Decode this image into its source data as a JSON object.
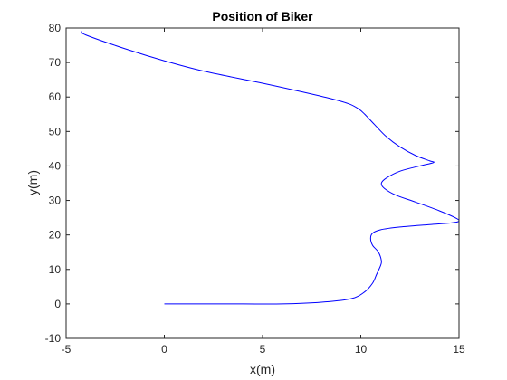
{
  "chart_data": {
    "type": "line",
    "title": "Position of Biker",
    "xlabel": "x(m)",
    "ylabel": "y(m)",
    "xlim": [
      -5,
      15
    ],
    "ylim": [
      -10,
      80
    ],
    "xticks": [
      -5,
      0,
      5,
      10,
      15
    ],
    "yticks": [
      -10,
      0,
      10,
      20,
      30,
      40,
      50,
      60,
      70,
      80
    ],
    "grid": false,
    "box": true,
    "series": [
      {
        "color": "#0000ff",
        "x": [
          0,
          2,
          4,
          6,
          8,
          9.5,
          10.2,
          10.6,
          10.8,
          11.0,
          11.05,
          10.9,
          10.6,
          10.5,
          10.6,
          11.0,
          12.0,
          13.5,
          14.6,
          15.0,
          14.8,
          14.0,
          12.8,
          11.8,
          11.2,
          11.05,
          11.3,
          12.0,
          13.0,
          13.7,
          13.5,
          12.8,
          12.0,
          11.3,
          10.7,
          10.2,
          9.9,
          9.4,
          8.5,
          7.0,
          5.0,
          2.0,
          0.0,
          -2.0,
          -4.0,
          -4.2
        ],
        "y": [
          0,
          0,
          0,
          0,
          0.5,
          1.5,
          3.5,
          6.0,
          8.5,
          11.0,
          12.5,
          15.0,
          17.0,
          19.0,
          20.5,
          21.5,
          22.3,
          23.0,
          23.5,
          24.0,
          25.0,
          27.0,
          29.5,
          31.5,
          33.5,
          35.0,
          36.5,
          38.5,
          40.0,
          41.0,
          41.5,
          43.0,
          45.5,
          48.5,
          52.0,
          55.0,
          56.5,
          58.0,
          59.5,
          61.5,
          64.0,
          67.5,
          70.5,
          74.0,
          78.0,
          79.0
        ]
      }
    ]
  }
}
